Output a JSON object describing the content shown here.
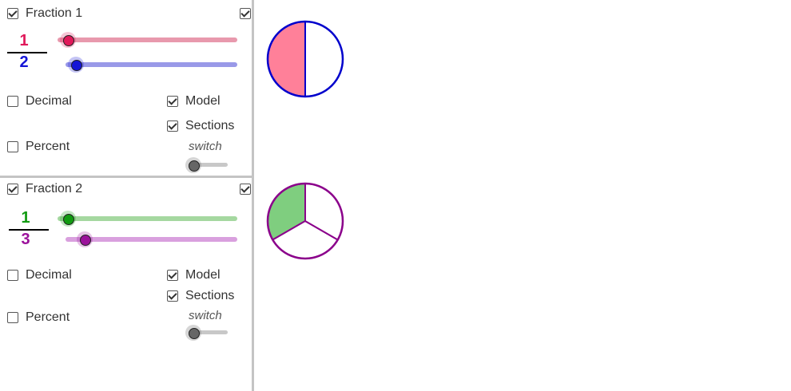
{
  "fraction1": {
    "label": "Fraction 1",
    "numerator": "1",
    "denominator": "2",
    "numerator_color": "#e0195a",
    "denominator_color": "#1515d6",
    "numerator_track_color": "#e899ad",
    "denominator_track_color": "#9999e8",
    "options": {
      "decimal": "Decimal",
      "percent": "Percent",
      "model": "Model",
      "sections": "Sections",
      "switch": "switch"
    },
    "checked": {
      "fraction": true,
      "visible": true,
      "decimal": false,
      "percent": false,
      "model": true,
      "sections": true
    },
    "model": {
      "parts": 2,
      "filled": 1,
      "fill_color": "#ff8099",
      "stroke_color": "#0000cc"
    }
  },
  "fraction2": {
    "label": "Fraction 2",
    "numerator": "1",
    "denominator": "3",
    "numerator_color": "#119b11",
    "denominator_color": "#9b119b",
    "numerator_track_color": "#a5d8a0",
    "denominator_track_color": "#d9a0de",
    "options": {
      "decimal": "Decimal",
      "percent": "Percent",
      "model": "Model",
      "sections": "Sections",
      "switch": "switch"
    },
    "checked": {
      "fraction": true,
      "visible": true,
      "decimal": false,
      "percent": false,
      "model": true,
      "sections": true
    },
    "model": {
      "parts": 3,
      "filled": 1,
      "fill_color": "#7fce7f",
      "stroke_color": "#8b008b"
    }
  },
  "switch_state": "off"
}
